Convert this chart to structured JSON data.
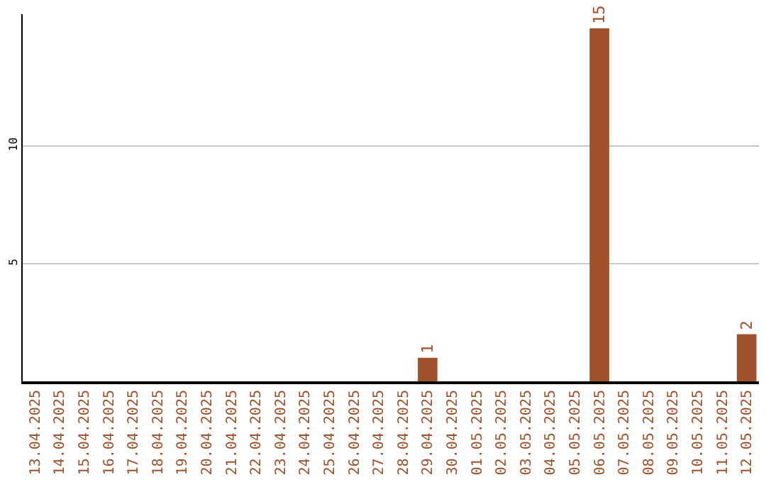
{
  "chart_data": {
    "type": "bar",
    "categories": [
      "13.04.2025",
      "14.04.2025",
      "15.04.2025",
      "16.04.2025",
      "17.04.2025",
      "18.04.2025",
      "19.04.2025",
      "20.04.2025",
      "21.04.2025",
      "22.04.2025",
      "23.04.2025",
      "24.04.2025",
      "25.04.2025",
      "26.04.2025",
      "27.04.2025",
      "28.04.2025",
      "29.04.2025",
      "30.04.2025",
      "01.05.2025",
      "02.05.2025",
      "03.05.2025",
      "04.05.2025",
      "05.05.2025",
      "06.05.2025",
      "07.05.2025",
      "08.05.2025",
      "09.05.2025",
      "10.05.2025",
      "11.05.2025",
      "12.05.2025"
    ],
    "values": [
      0,
      0,
      0,
      0,
      0,
      0,
      0,
      0,
      0,
      0,
      0,
      0,
      0,
      0,
      0,
      0,
      1,
      0,
      0,
      0,
      0,
      0,
      0,
      15,
      0,
      0,
      0,
      0,
      0,
      2
    ],
    "value_labels": [
      null,
      null,
      null,
      null,
      null,
      null,
      null,
      null,
      null,
      null,
      null,
      null,
      null,
      null,
      null,
      null,
      "1",
      null,
      null,
      null,
      null,
      null,
      null,
      "15",
      null,
      null,
      null,
      null,
      null,
      "2"
    ],
    "color": "#a0522d",
    "ylim": [
      0,
      15.6
    ],
    "yticks": [
      5,
      10
    ],
    "grid": "y"
  }
}
